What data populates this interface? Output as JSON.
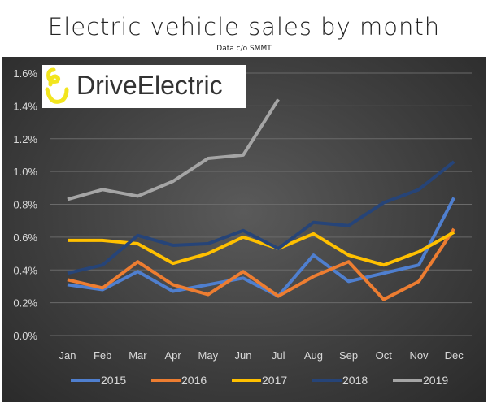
{
  "title": "Electric vehicle sales by month",
  "subtitle": "Data c/o SMMT",
  "logo": {
    "text": "DriveElectric",
    "icon_color": "#f2e51e"
  },
  "chart_data": {
    "type": "line",
    "title": "Electric vehicle sales by month",
    "subtitle": "Data c/o SMMT",
    "categories": [
      "Jan",
      "Feb",
      "Mar",
      "Apr",
      "May",
      "Jun",
      "Jul",
      "Aug",
      "Sep",
      "Oct",
      "Nov",
      "Dec"
    ],
    "ylim": [
      0,
      1.6
    ],
    "yticks": [
      "0.0%",
      "0.2%",
      "0.4%",
      "0.6%",
      "0.8%",
      "1.0%",
      "1.2%",
      "1.4%",
      "1.6%"
    ],
    "ytick_values": [
      0,
      0.2,
      0.4,
      0.6,
      0.8,
      1.0,
      1.2,
      1.4,
      1.6
    ],
    "grid": true,
    "legend": "bottom",
    "series": [
      {
        "name": "2015",
        "color": "#4f7fcf",
        "values": [
          0.31,
          0.28,
          0.39,
          0.27,
          0.31,
          0.35,
          0.24,
          0.49,
          0.33,
          0.38,
          0.43,
          0.84
        ]
      },
      {
        "name": "2016",
        "color": "#ed7d31",
        "values": [
          0.34,
          0.29,
          0.45,
          0.31,
          0.25,
          0.39,
          0.24,
          0.36,
          0.45,
          0.22,
          0.33,
          0.65
        ]
      },
      {
        "name": "2017",
        "color": "#ffc000",
        "values": [
          0.58,
          0.58,
          0.56,
          0.44,
          0.5,
          0.6,
          0.53,
          0.62,
          0.49,
          0.43,
          0.51,
          0.63
        ]
      },
      {
        "name": "2018",
        "color": "#264478",
        "values": [
          0.38,
          0.43,
          0.61,
          0.55,
          0.56,
          0.64,
          0.53,
          0.69,
          0.67,
          0.81,
          0.89,
          1.06
        ]
      },
      {
        "name": "2019",
        "color": "#a5a5a5",
        "values": [
          0.83,
          0.89,
          0.85,
          0.94,
          1.08,
          1.1,
          1.44,
          null,
          null,
          null,
          null,
          null
        ]
      }
    ]
  }
}
